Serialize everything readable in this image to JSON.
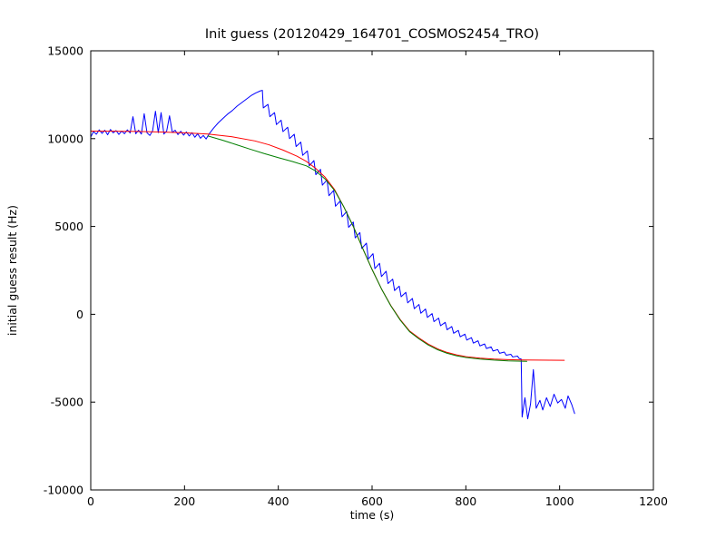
{
  "chart_data": {
    "type": "line",
    "title": "Init guess (20120429_164701_COSMOS2454_TRO)",
    "xlabel": "time (s)",
    "ylabel": "initial guess result (Hz)",
    "xlim": [
      0,
      1200
    ],
    "ylim": [
      -10000,
      15000
    ],
    "xticks": [
      0,
      200,
      400,
      600,
      800,
      1000,
      1200
    ],
    "yticks": [
      -10000,
      -5000,
      0,
      5000,
      10000,
      15000
    ],
    "grid": false,
    "legend_position": "none",
    "background_color": "#ffffff",
    "frame_color": "#000000",
    "series": [
      {
        "name": "initial-guess-data",
        "color": "#0000ff",
        "x": [
          0,
          6,
          12,
          18,
          24,
          30,
          36,
          42,
          48,
          54,
          60,
          66,
          72,
          78,
          84,
          90,
          96,
          102,
          108,
          114,
          120,
          126,
          132,
          138,
          144,
          150,
          156,
          162,
          168,
          174,
          180,
          186,
          192,
          198,
          204,
          210,
          216,
          222,
          228,
          234,
          240,
          246,
          252,
          262,
          272,
          282,
          292,
          302,
          312,
          322,
          332,
          342,
          352,
          362,
          366,
          368,
          378,
          382,
          392,
          396,
          406,
          410,
          420,
          424,
          434,
          438,
          448,
          452,
          462,
          466,
          476,
          480,
          490,
          494,
          504,
          508,
          518,
          522,
          532,
          536,
          546,
          550,
          560,
          564,
          574,
          578,
          588,
          592,
          602,
          606,
          616,
          620,
          630,
          634,
          644,
          648,
          658,
          662,
          672,
          676,
          686,
          690,
          700,
          704,
          714,
          718,
          728,
          732,
          742,
          746,
          756,
          760,
          770,
          774,
          784,
          788,
          798,
          802,
          812,
          816,
          826,
          830,
          840,
          844,
          854,
          858,
          868,
          872,
          882,
          886,
          896,
          900,
          910,
          914,
          918,
          920,
          926,
          932,
          938,
          944,
          950,
          958,
          964,
          972,
          980,
          988,
          996,
          1004,
          1012,
          1018,
          1026,
          1032
        ],
        "y": [
          10100,
          10400,
          10250,
          10500,
          10300,
          10480,
          10220,
          10520,
          10330,
          10460,
          10240,
          10430,
          10280,
          10500,
          10320,
          11250,
          10280,
          10480,
          10260,
          11420,
          10330,
          10180,
          10450,
          11560,
          10340,
          11480,
          10260,
          10440,
          11300,
          10350,
          10480,
          10230,
          10420,
          10200,
          10380,
          10150,
          10340,
          10080,
          10280,
          10020,
          10180,
          9980,
          10250,
          10600,
          10900,
          11150,
          11400,
          11600,
          11850,
          12050,
          12250,
          12450,
          12600,
          12720,
          12750,
          11750,
          11950,
          11250,
          11480,
          10800,
          11050,
          10400,
          10650,
          10000,
          10250,
          9550,
          9800,
          9050,
          9300,
          8450,
          8750,
          7950,
          8250,
          7350,
          7650,
          6750,
          7050,
          6150,
          6450,
          5550,
          5850,
          4950,
          5250,
          4350,
          4650,
          3750,
          4050,
          3150,
          3450,
          2600,
          2900,
          2150,
          2450,
          1750,
          2000,
          1350,
          1600,
          1000,
          1250,
          650,
          900,
          320,
          560,
          60,
          300,
          -180,
          40,
          -420,
          -220,
          -650,
          -460,
          -880,
          -700,
          -1080,
          -920,
          -1280,
          -1130,
          -1470,
          -1330,
          -1640,
          -1510,
          -1800,
          -1690,
          -1950,
          -1860,
          -2090,
          -2010,
          -2220,
          -2150,
          -2330,
          -2280,
          -2430,
          -2380,
          -2520,
          -2550,
          -5850,
          -4750,
          -5950,
          -5100,
          -3150,
          -5350,
          -4900,
          -5450,
          -4750,
          -5250,
          -4550,
          -5050,
          -4850,
          -5350,
          -4650,
          -5150,
          -5650
        ]
      },
      {
        "name": "sigmoid-fit-red",
        "color": "#ff0000",
        "x": [
          0,
          50,
          100,
          150,
          200,
          250,
          300,
          350,
          380,
          410,
          440,
          460,
          480,
          500,
          520,
          540,
          560,
          580,
          600,
          620,
          640,
          660,
          680,
          700,
          720,
          740,
          760,
          780,
          800,
          830,
          860,
          890,
          920,
          950,
          980,
          1010
        ],
        "y": [
          10430,
          10420,
          10410,
          10380,
          10330,
          10260,
          10110,
          9870,
          9650,
          9350,
          9000,
          8700,
          8300,
          7800,
          7100,
          6100,
          5000,
          3750,
          2550,
          1450,
          500,
          -300,
          -950,
          -1350,
          -1700,
          -1970,
          -2170,
          -2310,
          -2410,
          -2500,
          -2550,
          -2580,
          -2600,
          -2610,
          -2615,
          -2620
        ]
      },
      {
        "name": "sigmoid-fit-green",
        "color": "#007f00",
        "x": [
          250,
          280,
          310,
          340,
          370,
          400,
          430,
          460,
          480,
          500,
          520,
          540,
          560,
          580,
          600,
          620,
          640,
          660,
          680,
          700,
          720,
          740,
          760,
          780,
          800,
          830,
          860,
          890,
          920,
          930
        ],
        "y": [
          10150,
          9920,
          9660,
          9400,
          9150,
          8920,
          8700,
          8450,
          8150,
          7700,
          7050,
          6100,
          5000,
          3750,
          2550,
          1450,
          480,
          -330,
          -990,
          -1400,
          -1750,
          -2020,
          -2220,
          -2360,
          -2460,
          -2550,
          -2610,
          -2650,
          -2670,
          -2680
        ]
      }
    ]
  }
}
